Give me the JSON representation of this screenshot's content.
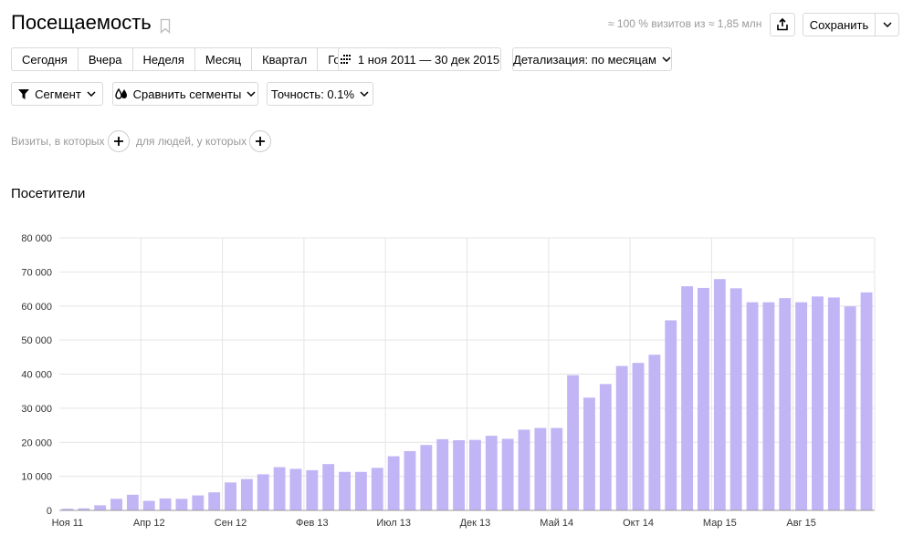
{
  "header": {
    "title": "Посещаемость",
    "sample_info": "≈ 100 % визитов из ≈ 1,85 млн",
    "save_label": "Сохранить"
  },
  "periods": [
    {
      "label": "Сегодня"
    },
    {
      "label": "Вчера"
    },
    {
      "label": "Неделя"
    },
    {
      "label": "Месяц"
    },
    {
      "label": "Квартал"
    },
    {
      "label": "Год"
    }
  ],
  "date_range": "1 ноя 2011 — 30 дек 2015",
  "detail": "Детализация: по месяцам",
  "filters": {
    "segment": "Сегмент",
    "compare": "Сравнить сегменты",
    "accuracy": "Точность: 0.1%"
  },
  "conditions": {
    "visits": "Визиты, в которых",
    "people": "для людей, у которых"
  },
  "icons": {
    "bookmark": "bookmark-icon",
    "share": "share-icon",
    "dropdown": "chevron-down-icon",
    "calendar": "calendar-grid-icon",
    "filter": "filter-icon",
    "compare": "compare-drops-icon",
    "add": "plus-icon"
  },
  "colors": {
    "bar": "#c2b5f5",
    "bar_stroke": "#a995ee",
    "grid": "#e5e5e5",
    "axis_text": "#333333"
  },
  "chart_data": {
    "type": "bar",
    "title": "Посетители",
    "ylim": [
      0,
      80000
    ],
    "yticks": [
      "0",
      "10 000",
      "20 000",
      "30 000",
      "40 000",
      "50 000",
      "60 000",
      "70 000",
      "80 000"
    ],
    "xticks": [
      {
        "index": 0,
        "label": "Ноя 11"
      },
      {
        "index": 5,
        "label": "Апр 12"
      },
      {
        "index": 10,
        "label": "Сен 12"
      },
      {
        "index": 15,
        "label": "Фев 13"
      },
      {
        "index": 20,
        "label": "Июл 13"
      },
      {
        "index": 25,
        "label": "Дек 13"
      },
      {
        "index": 30,
        "label": "Май 14"
      },
      {
        "index": 35,
        "label": "Окт 14"
      },
      {
        "index": 40,
        "label": "Мар 15"
      },
      {
        "index": 45,
        "label": "Авг 15"
      }
    ],
    "categories": [
      "Ноя 11",
      "Дек 11",
      "Янв 12",
      "Фев 12",
      "Мар 12",
      "Апр 12",
      "Май 12",
      "Июн 12",
      "Июл 12",
      "Авг 12",
      "Сен 12",
      "Окт 12",
      "Ноя 12",
      "Дек 12",
      "Янв 13",
      "Фев 13",
      "Мар 13",
      "Апр 13",
      "Май 13",
      "Июн 13",
      "Июл 13",
      "Авг 13",
      "Сен 13",
      "Окт 13",
      "Ноя 13",
      "Дек 13",
      "Янв 14",
      "Фев 14",
      "Мар 14",
      "Апр 14",
      "Май 14",
      "Июн 14",
      "Июл 14",
      "Авг 14",
      "Сен 14",
      "Окт 14",
      "Ноя 14",
      "Дек 14",
      "Янв 15",
      "Фев 15",
      "Мар 15",
      "Апр 15",
      "Май 15",
      "Июн 15",
      "Июл 15",
      "Авг 15",
      "Сен 15",
      "Окт 15",
      "Ноя 15",
      "Дек 15"
    ],
    "values": [
      500,
      600,
      1500,
      3400,
      4600,
      2800,
      3500,
      3400,
      4400,
      5300,
      8200,
      9200,
      10600,
      12700,
      12200,
      11800,
      13600,
      11300,
      11300,
      12500,
      15900,
      17400,
      19200,
      20900,
      20600,
      20700,
      21900,
      21000,
      23700,
      24200,
      24200,
      39700,
      33100,
      37100,
      42400,
      43300,
      45700,
      55800,
      65800,
      65300,
      67900,
      65200,
      61100,
      61100,
      62300,
      61100,
      62800,
      62500,
      59900,
      64000
    ]
  }
}
